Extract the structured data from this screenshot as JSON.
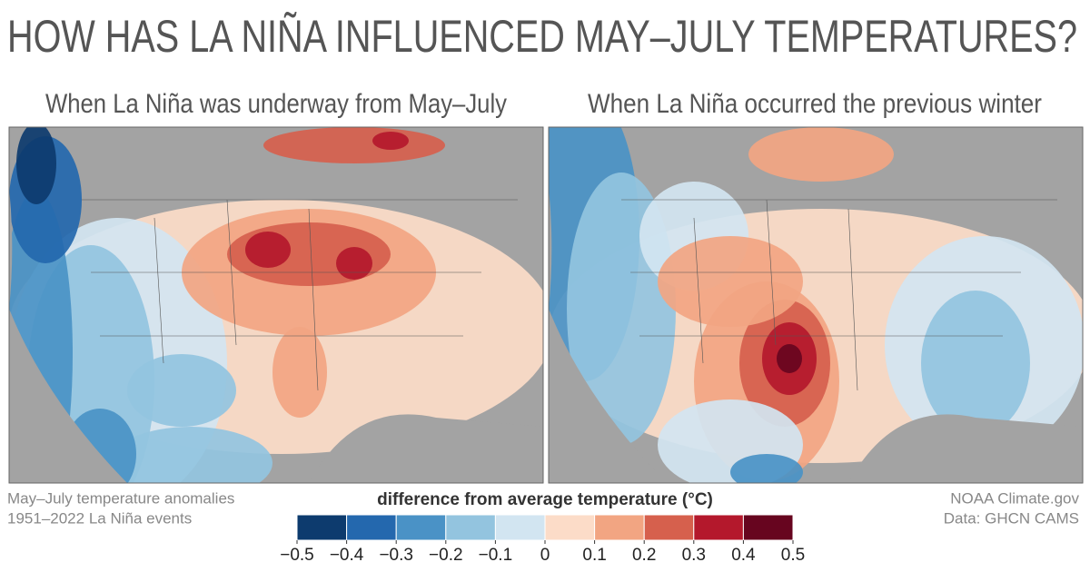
{
  "header": {
    "title": "HOW HAS LA NIÑA INFLUENCED MAY–JULY TEMPERATURES?"
  },
  "panels": [
    {
      "title": "When La Niña was underway from May–July"
    },
    {
      "title": "When La Niña occurred the previous winter"
    }
  ],
  "footnote": [
    "May–July temperature anomalies",
    "1951–2022 La Niña events"
  ],
  "credits": [
    "NOAA Climate.gov",
    "Data: GHCN CAMS"
  ],
  "legend": {
    "title": "difference from average temperature (°C)",
    "colors": [
      "#0d3b6e",
      "#2468ae",
      "#4a92c6",
      "#93c4df",
      "#d2e5f1",
      "#fcdcc8",
      "#f2a582",
      "#d6604d",
      "#b4182c",
      "#67051f"
    ],
    "ticks": [
      {
        "value": -0.5,
        "label": "−0.5"
      },
      {
        "value": -0.4,
        "label": "−0.4"
      },
      {
        "value": -0.3,
        "label": "−0.3"
      },
      {
        "value": -0.2,
        "label": "−0.2"
      },
      {
        "value": -0.1,
        "label": "−0.1"
      },
      0,
      0.1,
      0.2,
      0.3,
      0.4,
      0.5
    ]
  }
}
